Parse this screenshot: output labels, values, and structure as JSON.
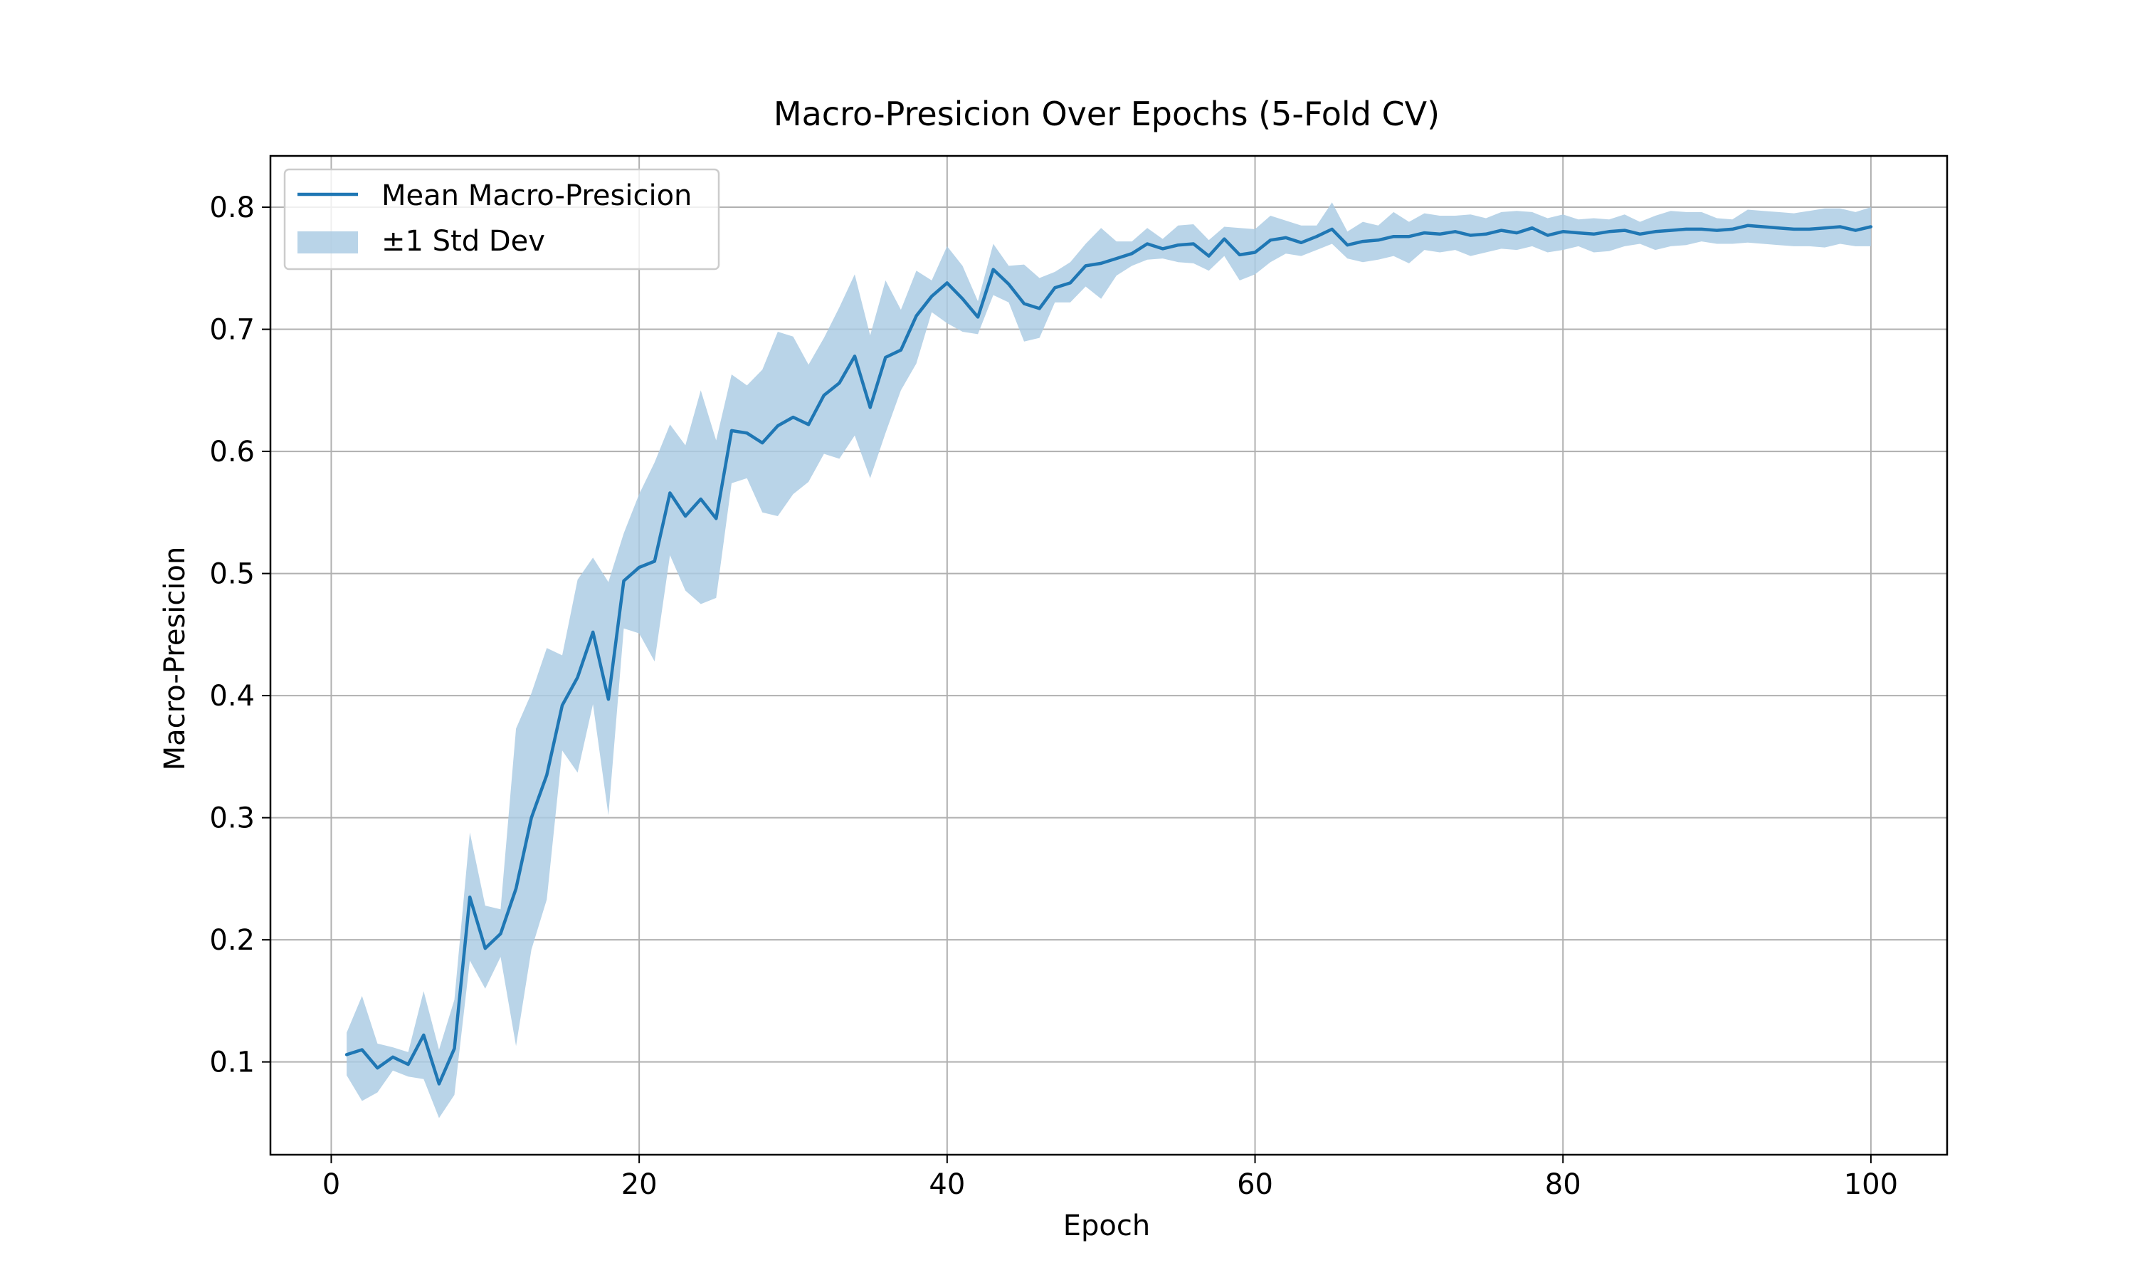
{
  "chart_data": {
    "type": "line",
    "title": "Macro-Presicion Over Epochs (5-Fold CV)",
    "xlabel": "Epoch",
    "ylabel": "Macro-Presicion",
    "xlim": [
      -3.95,
      104.95
    ],
    "ylim": [
      0.024,
      0.842
    ],
    "x_ticks": [
      0,
      20,
      40,
      60,
      80,
      100
    ],
    "y_ticks": [
      0.1,
      0.2,
      0.3,
      0.4,
      0.5,
      0.6,
      0.7,
      0.8
    ],
    "grid": true,
    "legend_position": "top-left",
    "legend": {
      "mean_label": "Mean Macro-Presicion",
      "std_label": "±1 Std Dev"
    },
    "colors": {
      "line": "#1f77b4",
      "band": "#a9cbe3"
    },
    "x": [
      1,
      2,
      3,
      4,
      5,
      6,
      7,
      8,
      9,
      10,
      11,
      12,
      13,
      14,
      15,
      16,
      17,
      18,
      19,
      20,
      21,
      22,
      23,
      24,
      25,
      26,
      27,
      28,
      29,
      30,
      31,
      32,
      33,
      34,
      35,
      36,
      37,
      38,
      39,
      40,
      41,
      42,
      43,
      44,
      45,
      46,
      47,
      48,
      49,
      50,
      51,
      52,
      53,
      54,
      55,
      56,
      57,
      58,
      59,
      60,
      61,
      62,
      63,
      64,
      65,
      66,
      67,
      68,
      69,
      70,
      71,
      72,
      73,
      74,
      75,
      76,
      77,
      78,
      79,
      80,
      81,
      82,
      83,
      84,
      85,
      86,
      87,
      88,
      89,
      90,
      91,
      92,
      93,
      94,
      95,
      96,
      97,
      98,
      99,
      100
    ],
    "series": [
      {
        "name": "Mean Macro-Presicion",
        "values": [
          0.106,
          0.11,
          0.095,
          0.104,
          0.098,
          0.122,
          0.082,
          0.111,
          0.235,
          0.193,
          0.205,
          0.242,
          0.3,
          0.335,
          0.392,
          0.415,
          0.452,
          0.397,
          0.494,
          0.505,
          0.51,
          0.566,
          0.547,
          0.561,
          0.545,
          0.617,
          0.615,
          0.607,
          0.621,
          0.628,
          0.622,
          0.646,
          0.656,
          0.678,
          0.636,
          0.677,
          0.683,
          0.711,
          0.727,
          0.738,
          0.725,
          0.71,
          0.749,
          0.737,
          0.721,
          0.717,
          0.734,
          0.738,
          0.752,
          0.754,
          0.758,
          0.762,
          0.77,
          0.766,
          0.769,
          0.77,
          0.76,
          0.774,
          0.761,
          0.763,
          0.773,
          0.775,
          0.771,
          0.776,
          0.782,
          0.769,
          0.772,
          0.773,
          0.776,
          0.776,
          0.779,
          0.778,
          0.78,
          0.777,
          0.778,
          0.781,
          0.779,
          0.783,
          0.777,
          0.78,
          0.779,
          0.778,
          0.78,
          0.781,
          0.778,
          0.78,
          0.781,
          0.782,
          0.782,
          0.781,
          0.782,
          0.785,
          0.784,
          0.783,
          0.782,
          0.782,
          0.783,
          0.784,
          0.781,
          0.784
        ]
      }
    ],
    "band": {
      "name": "±1 Std Dev",
      "lower": [
        0.089,
        0.068,
        0.075,
        0.093,
        0.088,
        0.086,
        0.054,
        0.073,
        0.183,
        0.16,
        0.186,
        0.113,
        0.192,
        0.233,
        0.355,
        0.337,
        0.393,
        0.302,
        0.455,
        0.451,
        0.428,
        0.515,
        0.486,
        0.475,
        0.48,
        0.574,
        0.578,
        0.55,
        0.547,
        0.565,
        0.575,
        0.598,
        0.594,
        0.613,
        0.578,
        0.615,
        0.65,
        0.672,
        0.714,
        0.705,
        0.698,
        0.696,
        0.728,
        0.722,
        0.69,
        0.693,
        0.722,
        0.722,
        0.735,
        0.725,
        0.744,
        0.752,
        0.757,
        0.758,
        0.755,
        0.754,
        0.748,
        0.76,
        0.74,
        0.745,
        0.755,
        0.762,
        0.76,
        0.765,
        0.77,
        0.758,
        0.755,
        0.757,
        0.76,
        0.754,
        0.765,
        0.763,
        0.765,
        0.76,
        0.763,
        0.766,
        0.765,
        0.768,
        0.763,
        0.765,
        0.768,
        0.763,
        0.764,
        0.768,
        0.77,
        0.765,
        0.768,
        0.769,
        0.772,
        0.77,
        0.77,
        0.771,
        0.77,
        0.769,
        0.768,
        0.768,
        0.767,
        0.77,
        0.768,
        0.768
      ],
      "upper": [
        0.124,
        0.154,
        0.115,
        0.112,
        0.108,
        0.158,
        0.11,
        0.151,
        0.288,
        0.228,
        0.225,
        0.373,
        0.402,
        0.439,
        0.433,
        0.495,
        0.513,
        0.493,
        0.533,
        0.565,
        0.591,
        0.622,
        0.605,
        0.65,
        0.609,
        0.663,
        0.654,
        0.667,
        0.698,
        0.694,
        0.671,
        0.693,
        0.718,
        0.745,
        0.695,
        0.74,
        0.716,
        0.748,
        0.74,
        0.768,
        0.752,
        0.723,
        0.77,
        0.752,
        0.753,
        0.742,
        0.747,
        0.755,
        0.77,
        0.783,
        0.772,
        0.772,
        0.783,
        0.774,
        0.785,
        0.786,
        0.773,
        0.784,
        0.783,
        0.782,
        0.793,
        0.789,
        0.785,
        0.785,
        0.804,
        0.78,
        0.788,
        0.785,
        0.796,
        0.788,
        0.795,
        0.793,
        0.793,
        0.794,
        0.791,
        0.796,
        0.797,
        0.796,
        0.791,
        0.794,
        0.79,
        0.791,
        0.79,
        0.794,
        0.788,
        0.793,
        0.797,
        0.796,
        0.796,
        0.791,
        0.79,
        0.798,
        0.797,
        0.796,
        0.795,
        0.797,
        0.799,
        0.799,
        0.796,
        0.8
      ]
    }
  }
}
